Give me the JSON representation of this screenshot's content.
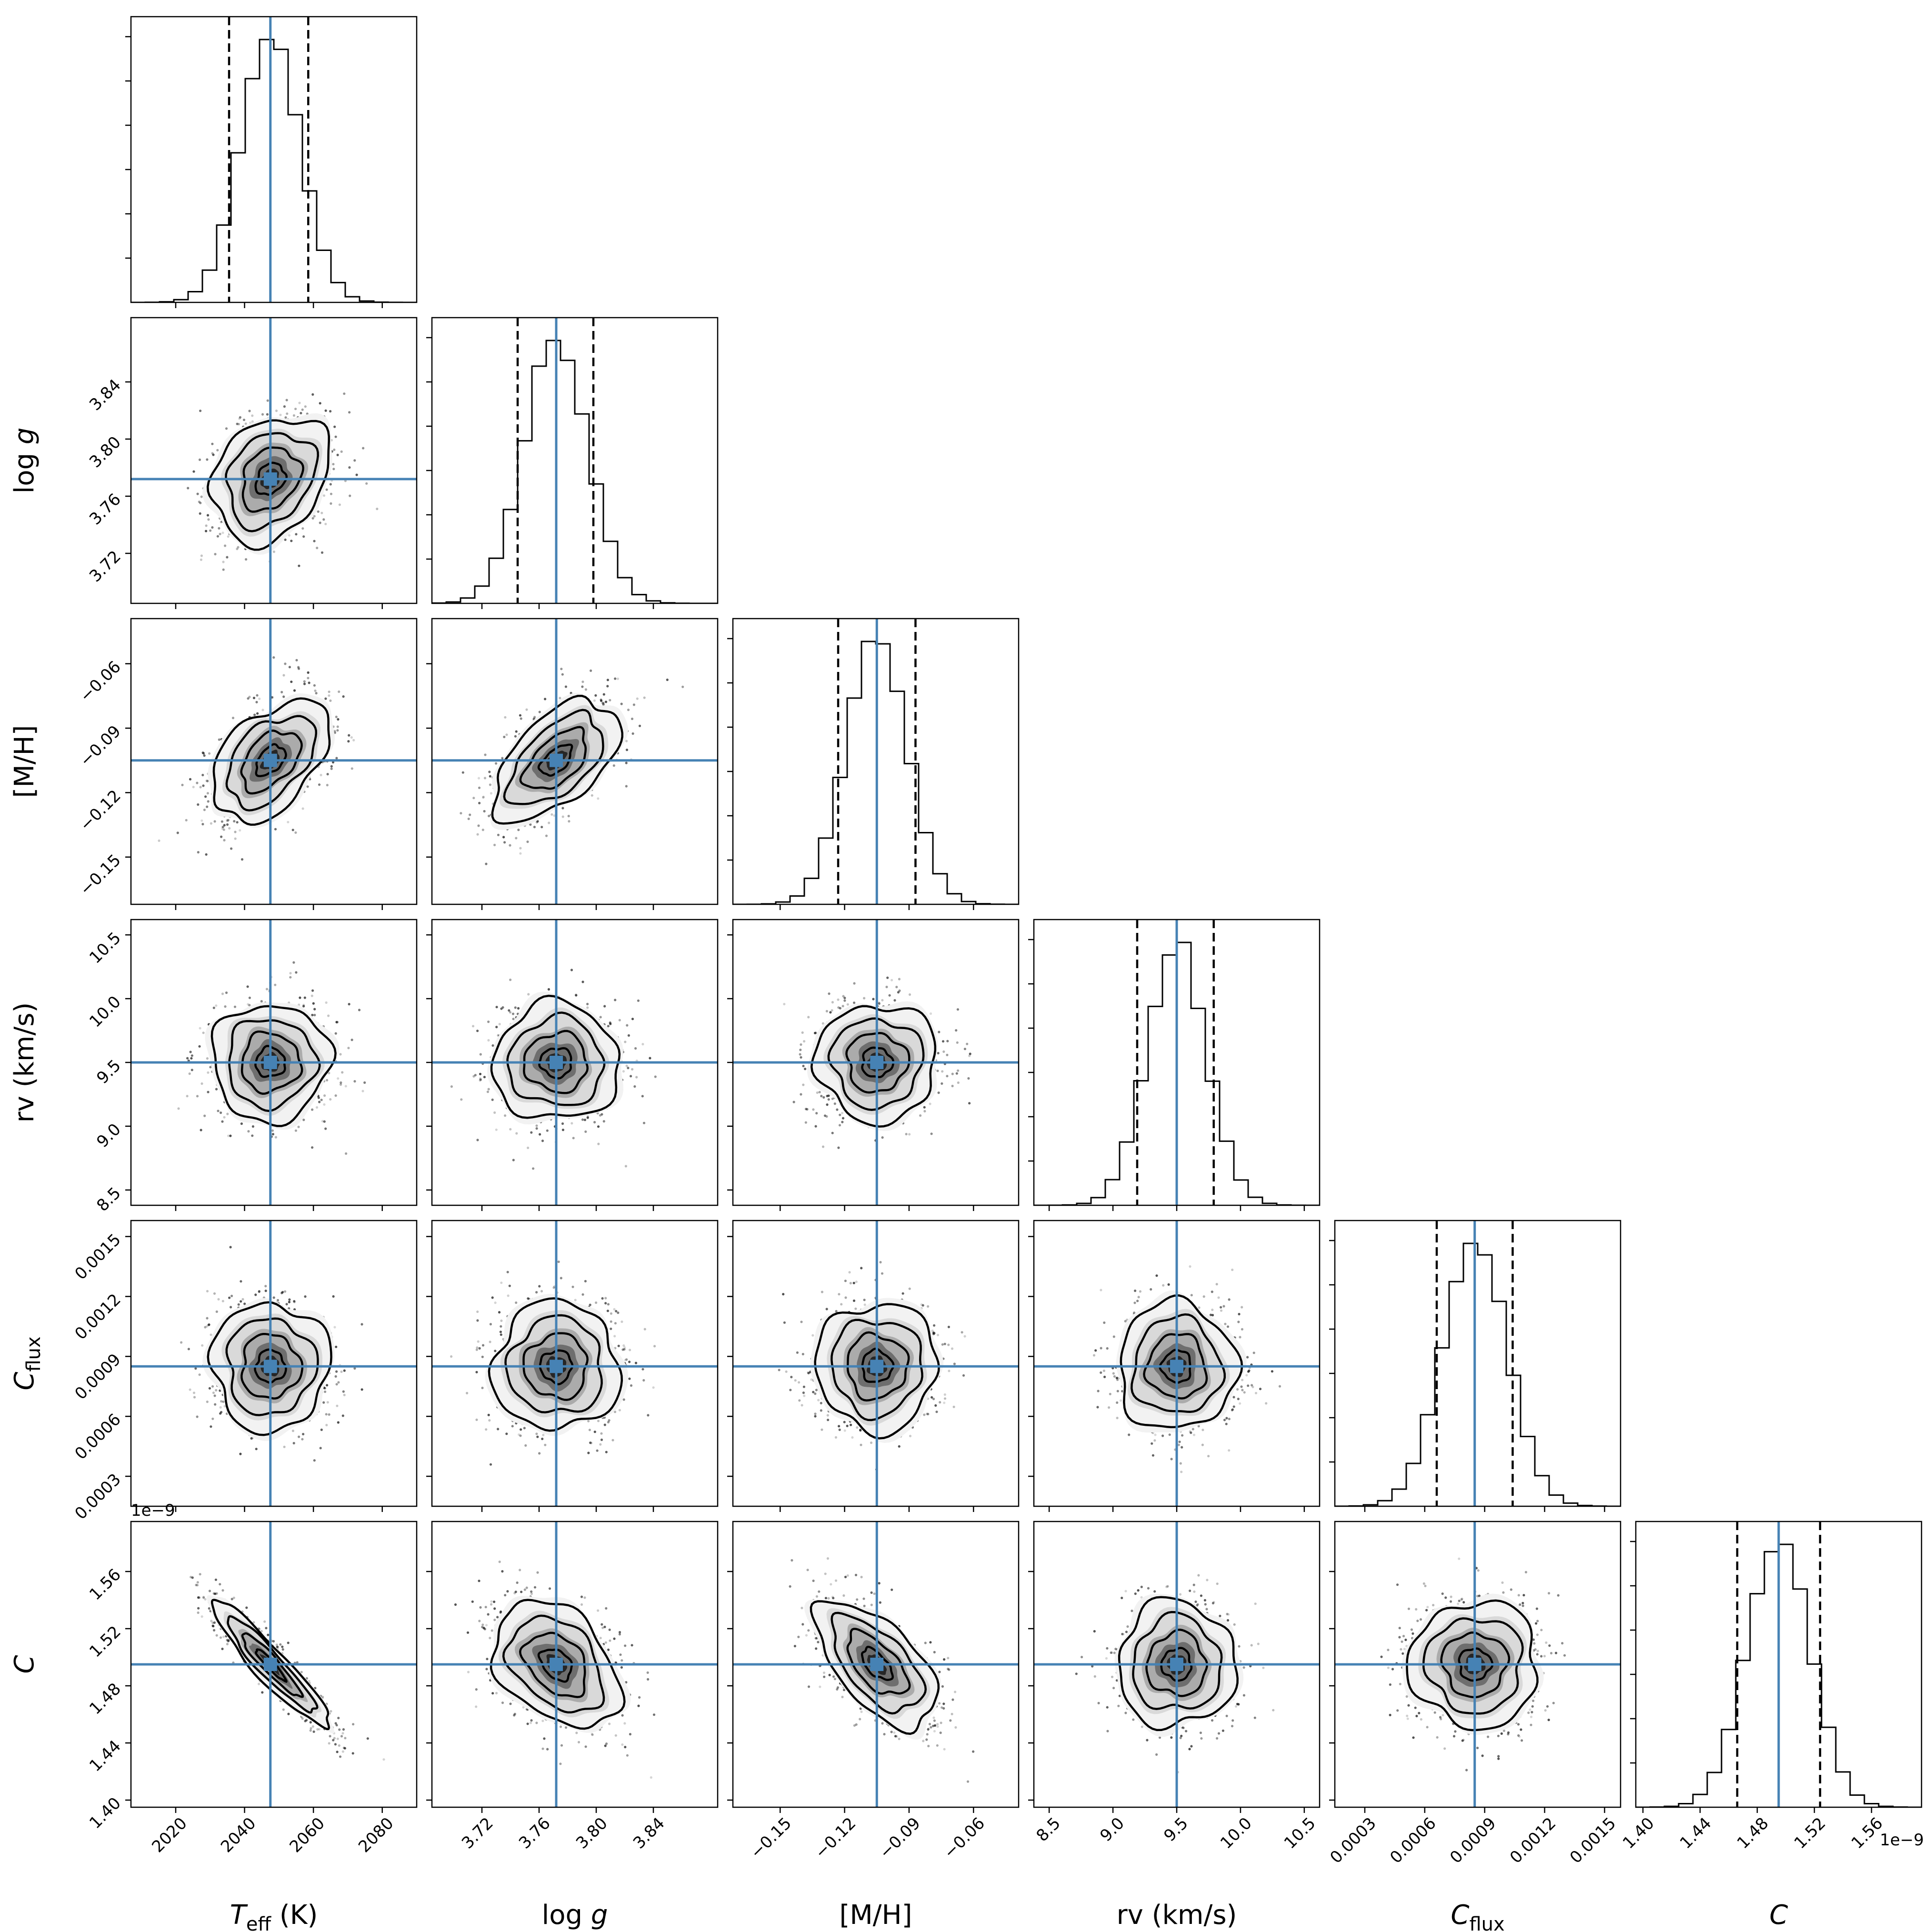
{
  "chart_data": {
    "type": "corner",
    "parameters": [
      {
        "key": "teff",
        "label": "T_eff (K)",
        "label_main": "T",
        "label_sub": "eff",
        "label_unit": " (K)",
        "range": [
          2007,
          2090
        ],
        "ticks": [
          2020,
          2040,
          2060,
          2080
        ],
        "tick_labels": [
          "2020",
          "2040",
          "2060",
          "2080"
        ],
        "truth": 2047.5,
        "quantiles": [
          2035.5,
          2058.5
        ],
        "hist_mean": 2047.5,
        "hist_sd": 8.5
      },
      {
        "key": "logg",
        "label": "log g",
        "label_main": "log ",
        "label_sub": "",
        "label_italic": "g",
        "range": [
          3.685,
          3.885
        ],
        "ticks": [
          3.72,
          3.76,
          3.8,
          3.84
        ],
        "tick_labels": [
          "3.72",
          "3.76",
          "3.80",
          "3.84"
        ],
        "truth": 3.772,
        "quantiles": [
          3.745,
          3.798
        ],
        "hist_mean": 3.772,
        "hist_sd": 0.022
      },
      {
        "key": "mh",
        "label": "[M/H]",
        "label_main": "[M/H]",
        "label_sub": "",
        "range": [
          -0.172,
          -0.039
        ],
        "ticks": [
          -0.15,
          -0.12,
          -0.09,
          -0.06
        ],
        "tick_labels": [
          "−0.15",
          "−0.12",
          "−0.09",
          "−0.06"
        ],
        "truth": -0.105,
        "quantiles": [
          -0.123,
          -0.087
        ],
        "hist_mean": -0.105,
        "hist_sd": 0.014
      },
      {
        "key": "rv",
        "label": "rv (km/s)",
        "label_main": "rv (km/s)",
        "label_sub": "",
        "range": [
          8.38,
          10.62
        ],
        "ticks": [
          8.5,
          9.0,
          9.5,
          10.0,
          10.5
        ],
        "tick_labels": [
          "8.5",
          "9.0",
          "9.5",
          "10.0",
          "10.5"
        ],
        "truth": 9.5,
        "quantiles": [
          9.19,
          9.79
        ],
        "hist_mean": 9.5,
        "hist_sd": 0.23
      },
      {
        "key": "cflux",
        "label": "C_flux",
        "label_main": "C",
        "label_sub": "flux",
        "range": [
          0.00015,
          0.00158
        ],
        "ticks": [
          0.0003,
          0.0006,
          0.0009,
          0.0012,
          0.0015
        ],
        "tick_labels": [
          "0.0003",
          "0.0006",
          "0.0009",
          "0.0012",
          "0.0015"
        ],
        "truth": 0.00085,
        "quantiles": [
          0.00066,
          0.00104
        ],
        "hist_mean": 0.00085,
        "hist_sd": 0.00016
      },
      {
        "key": "c",
        "label": "C",
        "label_main": "C",
        "label_sub": "",
        "range": [
          1.395,
          1.595
        ],
        "ticks": [
          1.4,
          1.44,
          1.48,
          1.52,
          1.56
        ],
        "tick_labels": [
          "1.40",
          "1.44",
          "1.48",
          "1.52",
          "1.56"
        ],
        "truth": 1.495,
        "quantiles": [
          1.466,
          1.524
        ],
        "hist_mean": 1.495,
        "hist_sd": 0.022,
        "offset_text": "1e−9"
      }
    ],
    "correlations": {
      "1_0": 0.25,
      "2_0": 0.45,
      "2_1": 0.55,
      "3_0": 0.0,
      "3_1": 0.0,
      "3_2": 0.0,
      "4_0": 0.0,
      "4_1": 0.0,
      "4_2": 0.0,
      "4_3": 0.0,
      "5_0": -0.93,
      "5_1": -0.35,
      "5_2": -0.6,
      "5_3": 0.0,
      "5_4": 0.0
    },
    "truth_color": "#4682b4",
    "contour_color": "#000000",
    "quantile_line_style": "dashed"
  }
}
